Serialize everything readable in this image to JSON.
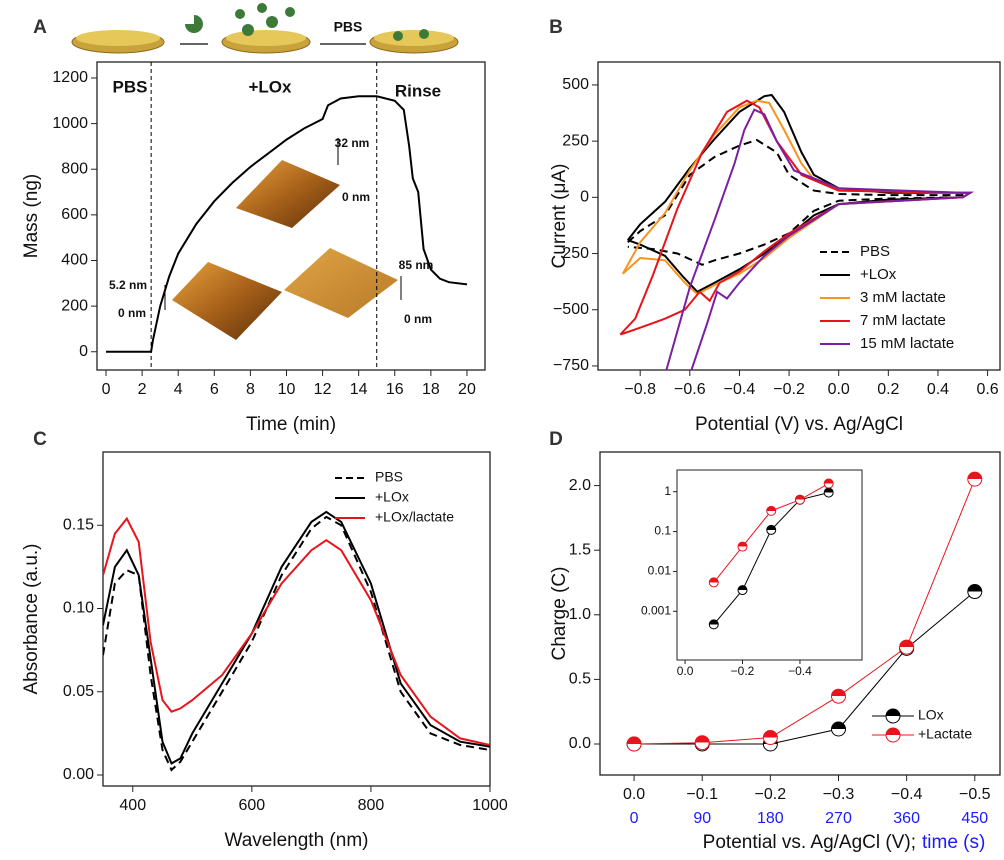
{
  "chart_data": [
    {
      "type": "line",
      "label": "A",
      "xlabel": "Time (min)",
      "ylabel": "Mass (ng)",
      "xlim": [
        -0.5,
        21
      ],
      "ylim": [
        -80,
        1270
      ],
      "xticks": [
        0,
        2,
        4,
        6,
        8,
        10,
        12,
        14,
        16,
        18,
        20
      ],
      "yticks": [
        0,
        200,
        400,
        600,
        800,
        1000,
        1200
      ],
      "vlines": [
        2.5,
        15
      ],
      "annotations": [
        "PBS",
        "+LOx",
        "Rinse",
        "5.2 nm",
        "0 nm",
        "32 nm",
        "0 nm",
        "85 nm",
        "0 nm",
        "PBS"
      ],
      "series": [
        {
          "name": "Mass",
          "color": "#000000",
          "x": [
            0,
            2.5,
            2.6,
            3,
            3.5,
            4,
            5,
            6,
            7,
            8,
            9,
            10,
            11,
            12,
            12.3,
            13,
            14,
            15,
            16,
            16.5,
            16.8,
            17,
            17.3,
            17.6,
            18,
            18.5,
            19,
            20
          ],
          "values": [
            0,
            0,
            50,
            200,
            330,
            430,
            560,
            660,
            740,
            810,
            870,
            930,
            980,
            1020,
            1080,
            1110,
            1120,
            1120,
            1100,
            1060,
            900,
            760,
            700,
            450,
            360,
            320,
            305,
            295
          ]
        }
      ]
    },
    {
      "type": "line",
      "label": "B",
      "xlabel": "Potential (V) vs. Ag/AgCl",
      "ylabel": "Current (μA)",
      "xlim": [
        -0.97,
        0.65
      ],
      "ylim": [
        -768,
        602
      ],
      "xticks": [
        {
          "value": -0.8,
          "label": "−0.8"
        },
        {
          "value": -0.6,
          "label": "−0.6"
        },
        {
          "value": -0.4,
          "label": "−0.4"
        },
        {
          "value": -0.2,
          "label": "−0.2"
        },
        {
          "value": 0,
          "label": "0.0"
        },
        0.2,
        0.4,
        0.6
      ],
      "yticks": [
        {
          "value": -750,
          "label": "−750"
        },
        {
          "value": -500,
          "label": "−500"
        },
        {
          "value": -250,
          "label": "−250"
        },
        0,
        250,
        500
      ],
      "series": [
        {
          "name": "PBS",
          "color": "#000000",
          "dash": true,
          "x": [
            -0.85,
            -0.8,
            -0.7,
            -0.6,
            -0.5,
            -0.4,
            -0.33,
            -0.25,
            -0.2,
            -0.1,
            0,
            0.2,
            0.5,
            0.53,
            0.5,
            0.2,
            0,
            -0.1,
            -0.2,
            -0.3,
            -0.4,
            -0.5,
            -0.55,
            -0.65,
            -0.75,
            -0.85
          ],
          "values": [
            -200,
            -150,
            -80,
            100,
            180,
            230,
            255,
            200,
            100,
            30,
            15,
            10,
            10,
            20,
            0,
            -5,
            -15,
            -60,
            -160,
            -210,
            -250,
            -280,
            -300,
            -250,
            -230,
            -220
          ]
        },
        {
          "name": "+LOx",
          "color": "#000000",
          "x": [
            -0.85,
            -0.8,
            -0.7,
            -0.6,
            -0.5,
            -0.4,
            -0.3,
            -0.27,
            -0.22,
            -0.15,
            -0.1,
            0,
            0.2,
            0.5,
            0.53,
            0.5,
            0.2,
            0,
            -0.1,
            -0.2,
            -0.3,
            -0.4,
            -0.5,
            -0.57,
            -0.63,
            -0.7,
            -0.8,
            -0.85
          ],
          "values": [
            -190,
            -120,
            -20,
            130,
            260,
            380,
            450,
            455,
            380,
            200,
            100,
            40,
            20,
            20,
            20,
            0,
            -10,
            -30,
            -80,
            -170,
            -250,
            -320,
            -380,
            -420,
            -350,
            -260,
            -210,
            -190
          ]
        },
        {
          "name": "3 mM lactate",
          "color": "#f7931e",
          "x": [
            -0.87,
            -0.8,
            -0.7,
            -0.6,
            -0.5,
            -0.4,
            -0.33,
            -0.28,
            -0.22,
            -0.15,
            -0.1,
            0,
            0.5,
            0.53,
            0.5,
            0,
            -0.2,
            -0.3,
            -0.4,
            -0.5,
            -0.57,
            -0.62,
            -0.7,
            -0.8,
            -0.87
          ],
          "values": [
            -340,
            -200,
            -70,
            120,
            280,
            400,
            430,
            420,
            300,
            150,
            80,
            30,
            20,
            20,
            0,
            -30,
            -180,
            -270,
            -340,
            -390,
            -430,
            -380,
            -280,
            -270,
            -340
          ]
        },
        {
          "name": "7 mM lactate",
          "color": "#e8141b",
          "x": [
            -0.88,
            -0.82,
            -0.75,
            -0.65,
            -0.55,
            -0.45,
            -0.37,
            -0.32,
            -0.25,
            -0.15,
            0,
            0.5,
            0.53,
            0.5,
            0,
            -0.2,
            -0.3,
            -0.4,
            -0.48,
            -0.52,
            -0.56,
            -0.62,
            -0.7,
            -0.8,
            -0.88
          ],
          "values": [
            -610,
            -540,
            -350,
            -50,
            200,
            380,
            430,
            400,
            250,
            100,
            30,
            20,
            20,
            0,
            -30,
            -160,
            -240,
            -330,
            -380,
            -460,
            -420,
            -500,
            -540,
            -580,
            -610
          ]
        },
        {
          "name": "15 mM lactate",
          "color": "#7b1fa2",
          "x": [
            -0.7,
            -0.6,
            -0.5,
            -0.42,
            -0.38,
            -0.34,
            -0.3,
            -0.25,
            -0.18,
            0,
            0.5,
            0.53,
            0.5,
            0,
            -0.2,
            -0.3,
            -0.4,
            -0.45,
            -0.49,
            -0.53,
            -0.6
          ],
          "values": [
            -790,
            -400,
            -100,
            150,
            300,
            390,
            370,
            250,
            120,
            40,
            20,
            20,
            0,
            -30,
            -170,
            -260,
            -380,
            -450,
            -420,
            -560,
            -790
          ]
        }
      ]
    },
    {
      "type": "line",
      "label": "C",
      "xlabel": "Wavelength (nm)",
      "ylabel": "Absorbance (a.u.)",
      "xlim": [
        350,
        1000
      ],
      "ylim": [
        -0.0066,
        0.194
      ],
      "xticks": [
        400,
        600,
        800,
        1000
      ],
      "yticks": [
        {
          "value": 0,
          "label": "0.00"
        },
        0.05,
        {
          "value": 0.1,
          "label": "0.10"
        },
        0.15
      ],
      "series": [
        {
          "name": "PBS",
          "color": "#000000",
          "dash": true,
          "x": [
            350,
            370,
            390,
            410,
            430,
            450,
            465,
            480,
            500,
            550,
            600,
            650,
            700,
            725,
            750,
            800,
            850,
            900,
            950,
            1000
          ],
          "values": [
            0.072,
            0.115,
            0.123,
            0.12,
            0.06,
            0.015,
            0.003,
            0.008,
            0.02,
            0.05,
            0.08,
            0.12,
            0.148,
            0.155,
            0.15,
            0.11,
            0.05,
            0.025,
            0.018,
            0.015
          ]
        },
        {
          "name": "+LOx",
          "color": "#000000",
          "x": [
            350,
            370,
            390,
            410,
            430,
            450,
            465,
            480,
            500,
            550,
            600,
            650,
            700,
            725,
            750,
            800,
            850,
            900,
            950,
            1000
          ],
          "values": [
            0.09,
            0.125,
            0.135,
            0.12,
            0.07,
            0.02,
            0.007,
            0.01,
            0.025,
            0.055,
            0.085,
            0.125,
            0.152,
            0.158,
            0.152,
            0.115,
            0.055,
            0.03,
            0.02,
            0.017
          ]
        },
        {
          "name": "+LOx/lactate",
          "color": "#e8141b",
          "x": [
            350,
            370,
            390,
            410,
            430,
            450,
            465,
            480,
            500,
            550,
            600,
            650,
            700,
            725,
            750,
            800,
            850,
            900,
            950,
            1000
          ],
          "values": [
            0.12,
            0.145,
            0.154,
            0.14,
            0.08,
            0.045,
            0.038,
            0.04,
            0.045,
            0.06,
            0.085,
            0.115,
            0.135,
            0.141,
            0.135,
            0.105,
            0.06,
            0.035,
            0.022,
            0.018
          ]
        }
      ]
    },
    {
      "type": "line",
      "label": "D",
      "xlabel": "Potential vs. Ag/AgCl (V);",
      "x2label": "time (s)",
      "ylabel": "Charge (C)",
      "x2color": "#1a1aff",
      "xlim": [
        0.05,
        -0.537
      ],
      "ylim": [
        -0.24,
        2.26
      ],
      "x2lim": [
        -45,
        483.3
      ],
      "xticks": [
        {
          "value": 0,
          "label": "0.0"
        },
        {
          "value": -0.1,
          "label": "−0.1"
        },
        {
          "value": -0.2,
          "label": "−0.2"
        },
        {
          "value": -0.3,
          "label": "−0.3"
        },
        {
          "value": -0.4,
          "label": "−0.4"
        },
        {
          "value": -0.5,
          "label": "−0.5"
        }
      ],
      "x2ticks": [
        0,
        90,
        180,
        270,
        360,
        450
      ],
      "yticks": [
        {
          "value": 0,
          "label": "0.0"
        },
        0.5,
        {
          "value": 1,
          "label": "1.0"
        },
        1.5,
        {
          "value": 2,
          "label": "2.0"
        }
      ],
      "markers": "half",
      "x": [
        0,
        -0.1,
        -0.2,
        -0.3,
        -0.4,
        -0.5
      ],
      "series": [
        {
          "name": "LOx",
          "color": "#000000",
          "values": [
            0.0,
            0.0,
            0.0,
            0.116,
            0.74,
            1.18
          ]
        },
        {
          "name": "+Lactate",
          "color": "#e8141b",
          "values": [
            0.0,
            0.01,
            0.05,
            0.37,
            0.75,
            2.05
          ]
        }
      ]
    },
    {
      "type": "line",
      "log_y": true,
      "markers": "half",
      "xlim": [
        0.028,
        -0.616
      ],
      "ylim": [
        6e-05,
        3.5
      ],
      "xticks": [
        {
          "value": 0,
          "label": "0.0"
        },
        {
          "value": -0.2,
          "label": "−0.2"
        },
        {
          "value": -0.4,
          "label": "−0.4"
        }
      ],
      "yticks": [
        0.001,
        0.01,
        0.1,
        1
      ],
      "x": [
        -0.1,
        -0.2,
        -0.3,
        -0.4,
        -0.5
      ],
      "series": [
        {
          "name": "LOx",
          "color": "#000000",
          "values": [
            0.00047,
            0.0034,
            0.11,
            0.63,
            0.95
          ]
        },
        {
          "name": "+Lactate",
          "color": "#e8141b",
          "values": [
            0.0053,
            0.042,
            0.33,
            0.63,
            1.6
          ]
        }
      ]
    }
  ]
}
